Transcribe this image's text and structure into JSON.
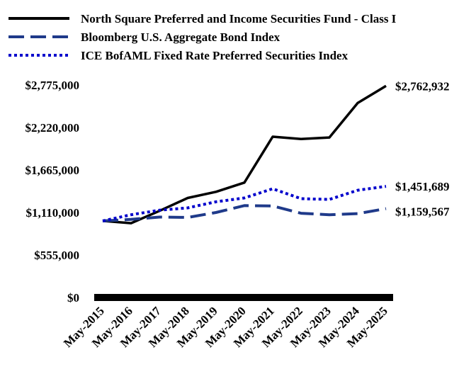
{
  "chart_data": {
    "type": "line",
    "title": "",
    "xlabel": "",
    "ylabel": "",
    "x": [
      "May-2015",
      "May-2016",
      "May-2017",
      "May-2018",
      "May-2019",
      "May-2020",
      "May-2021",
      "May-2022",
      "May-2023",
      "May-2024",
      "May-2025"
    ],
    "ylim": [
      0,
      2775000
    ],
    "yticks": [
      0,
      555000,
      1110000,
      1665000,
      2220000,
      2775000
    ],
    "ytick_labels": [
      "$0",
      "$555,000",
      "$1,110,000",
      "$1,665,000",
      "$2,220,000",
      "$2,775,000"
    ],
    "grid": false,
    "legend_position": "top",
    "series": [
      {
        "name": "North Square Preferred and Income Securities Fund - Class I",
        "color": "#000000",
        "style": "solid",
        "values": [
          1000000,
          970000,
          1130000,
          1300000,
          1380000,
          1500000,
          2100000,
          2070000,
          2090000,
          2540000,
          2762932
        ],
        "end_label": "$2,762,932"
      },
      {
        "name": "Bloomberg U.S. Aggregate Bond Index",
        "color": "#1f3a8a",
        "style": "dashed",
        "values": [
          1000000,
          1020000,
          1050000,
          1045000,
          1110000,
          1200000,
          1195000,
          1100000,
          1080000,
          1095000,
          1159567
        ],
        "end_label": "$1,159,567"
      },
      {
        "name": "ICE BofAML Fixed Rate Preferred Securities Index",
        "color": "#0000cc",
        "style": "dotted",
        "values": [
          1000000,
          1080000,
          1140000,
          1170000,
          1250000,
          1300000,
          1420000,
          1290000,
          1280000,
          1400000,
          1451689
        ],
        "end_label": "$1,451,689"
      }
    ]
  }
}
